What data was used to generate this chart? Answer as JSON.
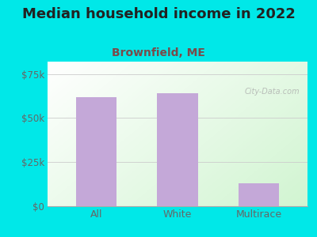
{
  "title": "Median household income in 2022",
  "subtitle": "Brownfield, ME",
  "categories": [
    "All",
    "White",
    "Multirace"
  ],
  "values": [
    62000,
    64000,
    13000
  ],
  "bar_color": "#c4a8d8",
  "yticks": [
    0,
    25000,
    50000,
    75000
  ],
  "ytick_labels": [
    "$0",
    "$25k",
    "$50k",
    "$75k"
  ],
  "ylim": [
    0,
    82000
  ],
  "background_outer": "#00e8e8",
  "title_color": "#222222",
  "subtitle_color": "#7a4a4a",
  "tick_color": "#666666",
  "watermark_text": "City-Data.com",
  "title_fontsize": 13,
  "subtitle_fontsize": 10,
  "tick_fontsize": 8.5,
  "xlim": [
    -0.6,
    2.6
  ]
}
